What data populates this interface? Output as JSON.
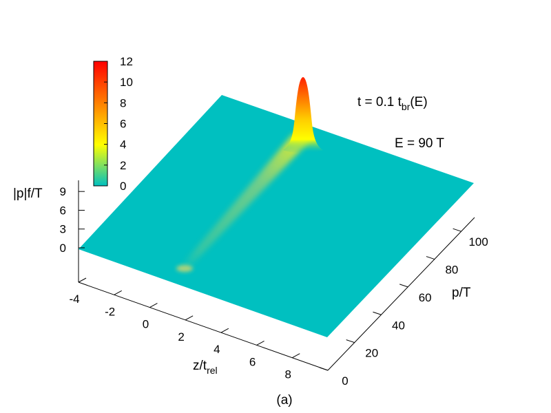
{
  "chart_data": {
    "type": "surface3d",
    "caption": "(a)",
    "annotations": {
      "time_prefix": "t = 0.1 t",
      "time_sub": "br",
      "time_suffix": "(E)",
      "energy": "E = 90 T"
    },
    "z_axis": {
      "label_main": "z/t",
      "label_sub": "rel",
      "range": [
        -4,
        10
      ],
      "ticks": [
        -4,
        -2,
        0,
        2,
        4,
        6,
        8
      ],
      "tick_labels": [
        "-4",
        "-2",
        "0",
        "2",
        "4",
        "6",
        "8"
      ]
    },
    "p_axis": {
      "label": "p/T",
      "range": [
        0,
        110
      ],
      "ticks": [
        0,
        20,
        40,
        60,
        80,
        100
      ],
      "tick_labels": [
        "0",
        "20",
        "40",
        "60",
        "80",
        "100"
      ]
    },
    "f_axis": {
      "label": "|p|f/T",
      "range": [
        0,
        11
      ],
      "ticks": [
        0,
        3,
        6,
        9
      ],
      "tick_labels": [
        "0",
        "3",
        "6",
        "9"
      ]
    },
    "colorbar": {
      "range": [
        0,
        12
      ],
      "ticks": [
        0,
        2,
        4,
        6,
        8,
        10,
        12
      ],
      "tick_labels": [
        "0",
        "2",
        "4",
        "6",
        "8",
        "10",
        "12"
      ],
      "colors": [
        "#00c0c0",
        "#ffff00",
        "#ff0000"
      ]
    },
    "surface": {
      "baseline_color": "#00c0c0",
      "peak": {
        "z": 0.5,
        "p": 90,
        "height": 11.5
      },
      "ridge": {
        "p_start": 2,
        "p_end": 90,
        "max_height": 1.2
      },
      "bump": {
        "z": 0.3,
        "p": 3,
        "height": 1.5
      }
    }
  }
}
